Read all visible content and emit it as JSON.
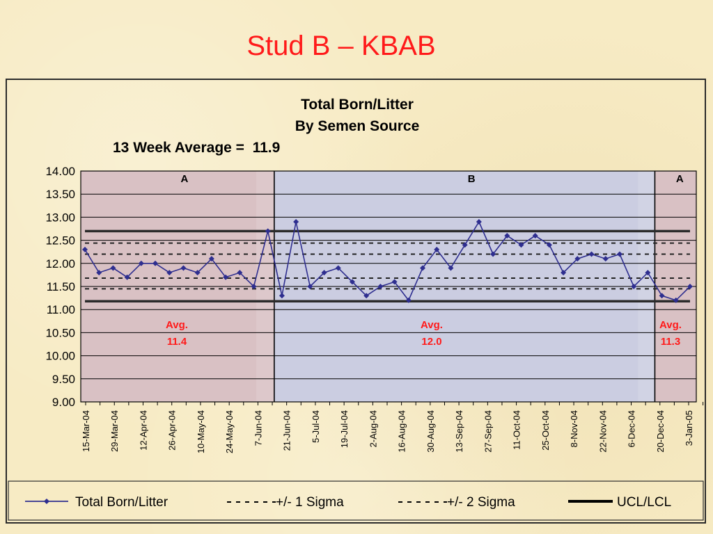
{
  "slide": {
    "title": "Stud B – KBAB"
  },
  "chart_data": {
    "type": "line",
    "title": "Total Born/Litter",
    "subtitle": "By Semen Source",
    "average_label": "13 Week Average =  11.9",
    "ylim": [
      9.0,
      14.0
    ],
    "y_ticks": [
      "9.00",
      "9.50",
      "10.00",
      "10.50",
      "11.00",
      "11.50",
      "12.00",
      "12.50",
      "13.00",
      "13.50",
      "14.00"
    ],
    "x_tick_labels": [
      "15-Mar-04",
      "29-Mar-04",
      "12-Apr-04",
      "26-Apr-04",
      "10-May-04",
      "24-May-04",
      "7-Jun-04",
      "21-Jun-04",
      "5-Jul-04",
      "19-Jul-04",
      "2-Aug-04",
      "16-Aug-04",
      "30-Aug-04",
      "13-Sep-04",
      "27-Sep-04",
      "11-Oct-04",
      "25-Oct-04",
      "8-Nov-04",
      "22-Nov-04",
      "6-Dec-04",
      "20-Dec-04",
      "3-Jan-05"
    ],
    "grid": true,
    "series": [
      {
        "name": "Total Born/Litter",
        "color": "#2e2e8f",
        "values": [
          12.3,
          11.8,
          11.9,
          11.7,
          12.0,
          12.0,
          11.8,
          11.9,
          11.8,
          12.1,
          11.7,
          11.8,
          11.5,
          12.7,
          11.3,
          12.9,
          11.5,
          11.8,
          11.9,
          11.6,
          11.3,
          11.5,
          11.6,
          11.2,
          11.9,
          12.3,
          11.9,
          12.4,
          12.9,
          12.2,
          12.6,
          12.4,
          12.6,
          12.4,
          11.8,
          12.1,
          12.2,
          12.1,
          12.2,
          11.5,
          11.8,
          11.3,
          11.2,
          11.5
        ]
      }
    ],
    "control_lines": {
      "ucl": 12.7,
      "lcl": 11.18,
      "plus_2_sigma": 12.44,
      "plus_1_sigma": 12.2,
      "minus_1_sigma": 11.68,
      "minus_2_sigma": 11.45
    },
    "regions": [
      {
        "label": "A",
        "avg_label": "Avg.",
        "avg_value": "11.4",
        "color": "#d9c1c4"
      },
      {
        "label": "B",
        "avg_label": "Avg.",
        "avg_value": "12.0",
        "color": "#cbcde1"
      },
      {
        "label": "A",
        "avg_label": "Avg.",
        "avg_value": "11.3",
        "color": "#d9c1c4"
      }
    ],
    "legend": {
      "placement": "bottom",
      "items": [
        {
          "label": "Total Born/Litter",
          "style": "line-marker"
        },
        {
          "label": "+/- 1 Sigma",
          "style": "dashed"
        },
        {
          "label": "+/- 2 Sigma",
          "style": "dashed"
        },
        {
          "label": "UCL/LCL",
          "style": "solid-thick"
        }
      ]
    }
  }
}
